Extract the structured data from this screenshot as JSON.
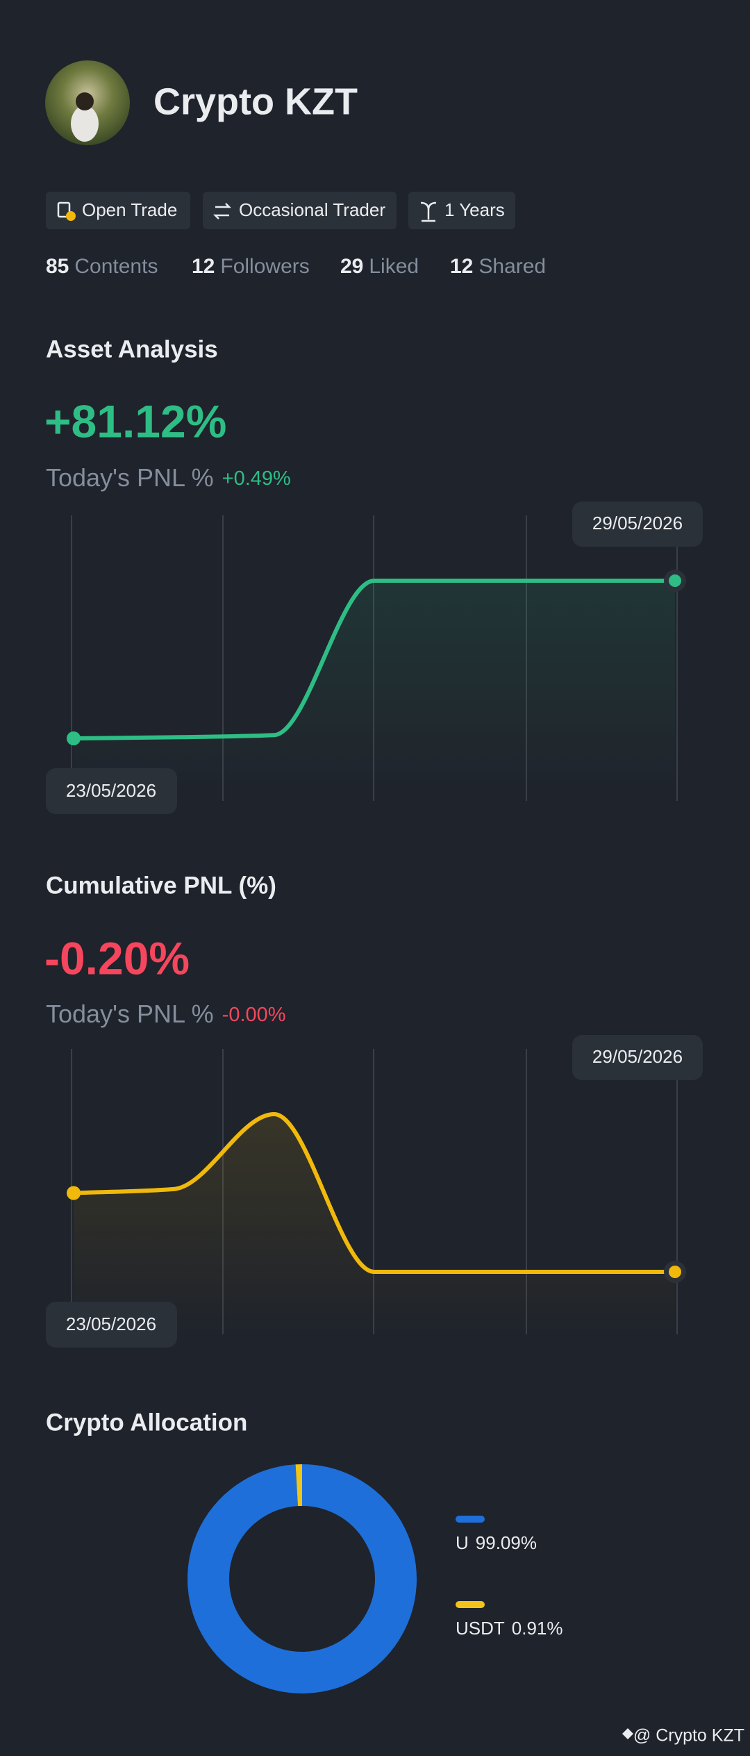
{
  "profile": {
    "name": "Crypto KZT",
    "tags": [
      "Open Trade",
      "Occasional Trader",
      "1 Years"
    ],
    "stats": [
      {
        "count": 85,
        "label": "Contents"
      },
      {
        "count": 12,
        "label": "Followers"
      },
      {
        "count": 29,
        "label": "Liked"
      },
      {
        "count": 12,
        "label": "Shared"
      }
    ]
  },
  "chart_data": [
    {
      "type": "line",
      "title": "Asset Analysis",
      "headline": "+81.12%",
      "subtitle": "Today's PNL %",
      "today_change": "+0.49%",
      "headline_color": "#2ebd85",
      "categories": [
        "23/05/2026",
        null,
        null,
        null,
        null,
        null,
        "29/05/2026"
      ],
      "values": [
        0,
        0.6,
        1.7,
        81.12,
        81.12,
        81.12,
        81.12
      ],
      "color": "#2ebd85"
    },
    {
      "type": "line",
      "title": "Cumulative PNL (%)",
      "headline": "-0.20%",
      "subtitle": "Today's PNL %",
      "today_change": "-0.00%",
      "headline_color": "#f6465d",
      "categories": [
        "23/05/2026",
        null,
        null,
        null,
        null,
        null,
        "29/05/2026"
      ],
      "values": [
        0,
        0.01,
        0.2,
        -0.2,
        -0.2,
        -0.2,
        -0.2
      ],
      "color": "#f0b90b"
    },
    {
      "type": "pie",
      "title": "Crypto Allocation",
      "categories": [
        "U",
        "USDT"
      ],
      "values": [
        99.09,
        0.91
      ],
      "value_labels": [
        "99.09%",
        "0.91%"
      ],
      "colors": [
        "#1e6fd9",
        "#f0c419"
      ]
    }
  ],
  "footer": "@ Crypto KZT"
}
